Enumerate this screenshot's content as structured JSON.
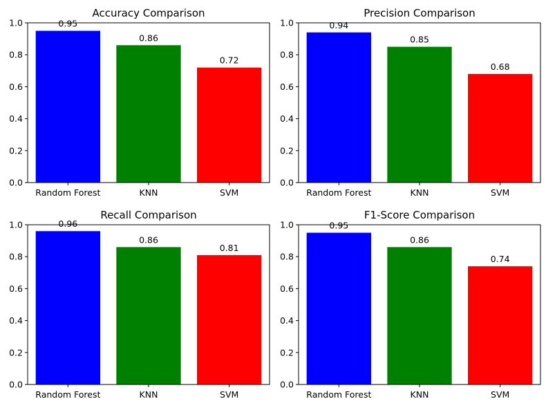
{
  "chart_data": [
    {
      "type": "bar",
      "title": "Accuracy Comparison",
      "categories": [
        "Random Forest",
        "KNN",
        "SVM"
      ],
      "values": [
        0.95,
        0.86,
        0.72
      ],
      "data_labels": [
        "0.95",
        "0.86",
        "0.72"
      ],
      "colors": [
        "#0000ff",
        "#008000",
        "#ff0000"
      ],
      "ylim": [
        0,
        1.0
      ],
      "yticks": [
        "0.0",
        "0.2",
        "0.4",
        "0.6",
        "0.8",
        "1.0"
      ],
      "xlabel": "",
      "ylabel": "",
      "grid": false
    },
    {
      "type": "bar",
      "title": "Precision Comparison",
      "categories": [
        "Random Forest",
        "KNN",
        "SVM"
      ],
      "values": [
        0.94,
        0.85,
        0.68
      ],
      "data_labels": [
        "0.94",
        "0.85",
        "0.68"
      ],
      "colors": [
        "#0000ff",
        "#008000",
        "#ff0000"
      ],
      "ylim": [
        0,
        1.0
      ],
      "yticks": [
        "0.0",
        "0.2",
        "0.4",
        "0.6",
        "0.8",
        "1.0"
      ],
      "xlabel": "",
      "ylabel": "",
      "grid": false
    },
    {
      "type": "bar",
      "title": "Recall Comparison",
      "categories": [
        "Random Forest",
        "KNN",
        "SVM"
      ],
      "values": [
        0.96,
        0.86,
        0.81
      ],
      "data_labels": [
        "0.96",
        "0.86",
        "0.81"
      ],
      "colors": [
        "#0000ff",
        "#008000",
        "#ff0000"
      ],
      "ylim": [
        0,
        1.0
      ],
      "yticks": [
        "0.0",
        "0.2",
        "0.4",
        "0.6",
        "0.8",
        "1.0"
      ],
      "xlabel": "",
      "ylabel": "",
      "grid": false
    },
    {
      "type": "bar",
      "title": "F1-Score Comparison",
      "categories": [
        "Random Forest",
        "KNN",
        "SVM"
      ],
      "values": [
        0.95,
        0.86,
        0.74
      ],
      "data_labels": [
        "0.95",
        "0.86",
        "0.74"
      ],
      "colors": [
        "#0000ff",
        "#008000",
        "#ff0000"
      ],
      "ylim": [
        0,
        1.0
      ],
      "yticks": [
        "0.0",
        "0.2",
        "0.4",
        "0.6",
        "0.8",
        "1.0"
      ],
      "xlabel": "",
      "ylabel": "",
      "grid": false
    }
  ]
}
